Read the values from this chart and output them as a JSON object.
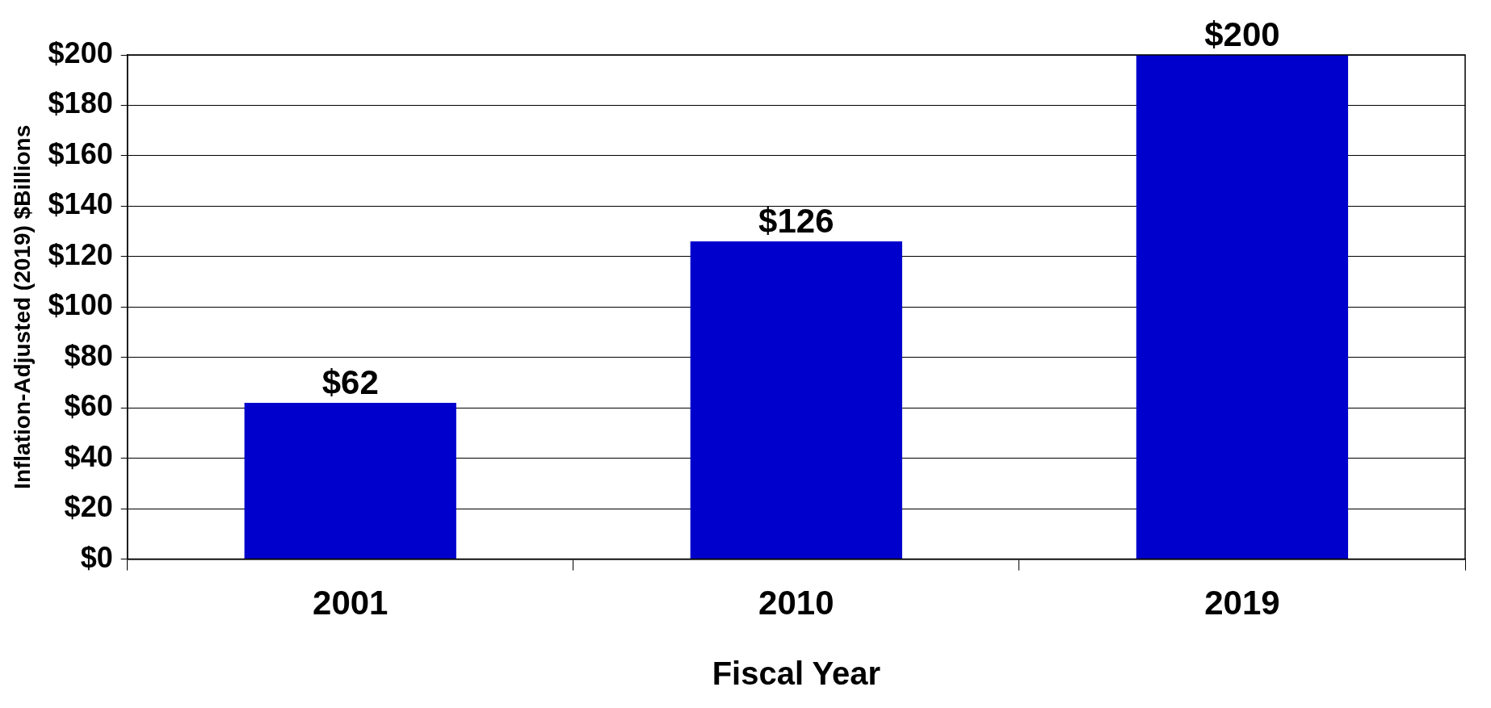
{
  "chart_data": {
    "type": "bar",
    "xlabel": "Fiscal Year",
    "ylabel": "Inflation-Adjusted (2019) $Billions",
    "categories": [
      "2001",
      "2010",
      "2019"
    ],
    "values": [
      62,
      126,
      200
    ],
    "color": "#0000cc",
    "value_labels": [
      "$62",
      "$126",
      "$200"
    ],
    "ylim": [
      0,
      200
    ],
    "yticks": [
      {
        "value": 0,
        "label": "$0"
      },
      {
        "value": 20,
        "label": "$20"
      },
      {
        "value": 40,
        "label": "$40"
      },
      {
        "value": 60,
        "label": "$60"
      },
      {
        "value": 80,
        "label": "$80"
      },
      {
        "value": 100,
        "label": "$100"
      },
      {
        "value": 120,
        "label": "$120"
      },
      {
        "value": 140,
        "label": "$140"
      },
      {
        "value": 160,
        "label": "$160"
      },
      {
        "value": 180,
        "label": "$180"
      },
      {
        "value": 200,
        "label": "$200"
      }
    ],
    "grid": "y",
    "legend": false
  }
}
